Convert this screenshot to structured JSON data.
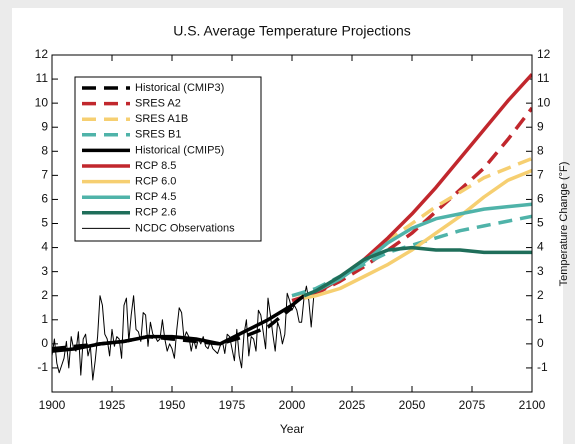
{
  "chart_data": {
    "type": "line",
    "title": "U.S. Average Temperature Projections",
    "x_label": "Year",
    "y2_label": "Temperature Change (°F)",
    "xlim": [
      1900,
      2100
    ],
    "xticks": [
      1900,
      1925,
      1950,
      1975,
      2000,
      2025,
      2050,
      2075,
      2100
    ],
    "ylim": [
      -2,
      12
    ],
    "yticks": [
      -1,
      0,
      1,
      2,
      3,
      4,
      5,
      6,
      7,
      8,
      9,
      10,
      11,
      12
    ],
    "y2lim": [
      -2,
      12
    ],
    "y2ticks": [
      -1,
      0,
      1,
      2,
      3,
      4,
      5,
      6,
      7,
      8,
      9,
      10,
      11,
      12
    ],
    "legend": "top-left",
    "series": [
      {
        "name": "Historical (CMIP3)",
        "color": "#000000",
        "style": "dashed",
        "width": 3.5,
        "x": [
          1900,
          1910,
          1920,
          1930,
          1940,
          1950,
          1960,
          1970,
          1980,
          1990,
          2000
        ],
        "values": [
          -0.2,
          -0.1,
          0,
          0.1,
          0.3,
          0.2,
          0.1,
          0,
          0.3,
          0.7,
          1.5
        ]
      },
      {
        "name": "SRES A2",
        "color": "#c1272d",
        "style": "dashed",
        "width": 3.5,
        "x": [
          2000,
          2010,
          2020,
          2030,
          2040,
          2050,
          2060,
          2070,
          2080,
          2090,
          2100
        ],
        "values": [
          1.8,
          2.1,
          2.6,
          3.2,
          3.9,
          4.6,
          5.5,
          6.4,
          7.3,
          8.5,
          9.8
        ]
      },
      {
        "name": "SRES A1B",
        "color": "#f6cf71",
        "style": "dashed",
        "width": 3.5,
        "x": [
          2000,
          2010,
          2020,
          2030,
          2040,
          2050,
          2060,
          2070,
          2080,
          2090,
          2100
        ],
        "values": [
          2.0,
          2.2,
          2.8,
          3.5,
          4.3,
          5.0,
          5.7,
          6.3,
          6.9,
          7.3,
          7.7
        ]
      },
      {
        "name": "SRES B1",
        "color": "#4fb3a9",
        "style": "dashed",
        "width": 3.5,
        "x": [
          2000,
          2010,
          2020,
          2030,
          2040,
          2050,
          2060,
          2070,
          2080,
          2090,
          2100
        ],
        "values": [
          2.0,
          2.3,
          2.8,
          3.3,
          3.8,
          4.1,
          4.4,
          4.7,
          4.9,
          5.1,
          5.3
        ]
      },
      {
        "name": "Historical (CMIP5)",
        "color": "#000000",
        "style": "solid",
        "width": 3.5,
        "x": [
          1900,
          1910,
          1920,
          1930,
          1940,
          1950,
          1960,
          1970,
          1980,
          1990,
          2000,
          2005
        ],
        "values": [
          -0.3,
          -0.2,
          0,
          0.1,
          0.3,
          0.3,
          0.2,
          0,
          0.5,
          1.0,
          1.6,
          2.0
        ]
      },
      {
        "name": "RCP 8.5",
        "color": "#c1272d",
        "style": "solid",
        "width": 3.5,
        "x": [
          2005,
          2010,
          2020,
          2030,
          2040,
          2050,
          2060,
          2070,
          2080,
          2090,
          2100
        ],
        "values": [
          2.0,
          2.1,
          2.7,
          3.5,
          4.4,
          5.4,
          6.5,
          7.7,
          8.9,
          10.1,
          11.2
        ]
      },
      {
        "name": "RCP 6.0",
        "color": "#f6cf71",
        "style": "solid",
        "width": 3.5,
        "x": [
          2005,
          2010,
          2020,
          2030,
          2040,
          2050,
          2060,
          2070,
          2080,
          2090,
          2100
        ],
        "values": [
          1.9,
          2.0,
          2.3,
          2.8,
          3.3,
          3.9,
          4.6,
          5.3,
          6.1,
          6.8,
          7.2
        ]
      },
      {
        "name": "RCP 4.5",
        "color": "#4fb3a9",
        "style": "solid",
        "width": 3.5,
        "x": [
          2005,
          2010,
          2020,
          2030,
          2040,
          2050,
          2060,
          2070,
          2080,
          2090,
          2100
        ],
        "values": [
          2.0,
          2.2,
          2.7,
          3.4,
          4.2,
          4.8,
          5.2,
          5.4,
          5.6,
          5.7,
          5.8
        ]
      },
      {
        "name": "RCP 2.6",
        "color": "#1f6e5a",
        "style": "solid",
        "width": 3.5,
        "x": [
          2005,
          2010,
          2020,
          2030,
          2040,
          2050,
          2060,
          2070,
          2080,
          2090,
          2100
        ],
        "values": [
          2.0,
          2.2,
          2.8,
          3.5,
          3.9,
          4.0,
          3.9,
          3.9,
          3.8,
          3.8,
          3.8
        ]
      },
      {
        "name": "NCDC Observations",
        "color": "#000000",
        "style": "solid",
        "width": 1,
        "x": [
          1900,
          1901,
          1902,
          1903,
          1904,
          1905,
          1906,
          1907,
          1908,
          1909,
          1910,
          1911,
          1912,
          1913,
          1914,
          1915,
          1916,
          1917,
          1918,
          1919,
          1920,
          1921,
          1922,
          1923,
          1924,
          1925,
          1926,
          1927,
          1928,
          1929,
          1930,
          1931,
          1932,
          1933,
          1934,
          1935,
          1936,
          1937,
          1938,
          1939,
          1940,
          1941,
          1942,
          1943,
          1944,
          1945,
          1946,
          1947,
          1948,
          1949,
          1950,
          1951,
          1952,
          1953,
          1954,
          1955,
          1956,
          1957,
          1958,
          1959,
          1960,
          1961,
          1962,
          1963,
          1964,
          1965,
          1966,
          1967,
          1968,
          1969,
          1970,
          1971,
          1972,
          1973,
          1974,
          1975,
          1976,
          1977,
          1978,
          1979,
          1980,
          1981,
          1982,
          1983,
          1984,
          1985,
          1986,
          1987,
          1988,
          1989,
          1990,
          1991,
          1992,
          1993,
          1994,
          1995,
          1996,
          1997,
          1998,
          1999,
          2000,
          2001,
          2002,
          2003,
          2004,
          2005,
          2006,
          2007,
          2008,
          2009
        ],
        "values": [
          -0.5,
          0.2,
          -0.8,
          -1.2,
          -0.9,
          -0.6,
          0.1,
          -1.0,
          0.3,
          -0.2,
          -0.3,
          0.5,
          -1.3,
          0.2,
          0.4,
          -0.5,
          -0.1,
          -1.5,
          -0.7,
          0.3,
          2.0,
          1.6,
          0.4,
          0.2,
          -0.5,
          0.6,
          -0.1,
          0.3,
          0.2,
          -0.6,
          1.6,
          1.9,
          0.1,
          1.2,
          2.0,
          0.6,
          0.5,
          0.1,
          1.3,
          1.2,
          -0.1,
          0.9,
          0.4,
          0.3,
          0.1,
          0.2,
          1.0,
          0.2,
          -0.3,
          0.0,
          -0.2,
          -0.6,
          0.6,
          1.5,
          1.3,
          0.2,
          0.5,
          0.3,
          -0.3,
          0.2,
          -0.2,
          0.2,
          0.0,
          0.3,
          -0.1,
          -0.2,
          0.1,
          -0.2,
          -0.3,
          -0.4,
          -0.1,
          0.1,
          -0.4,
          0.4,
          0.3,
          -0.2,
          -0.7,
          0.6,
          -0.5,
          -1.0,
          0.4,
          1.0,
          -0.5,
          0.3,
          0.2,
          -0.3,
          1.4,
          1.2,
          0.5,
          -0.2,
          1.9,
          1.2,
          0.4,
          -0.3,
          0.9,
          0.6,
          0.0,
          0.4,
          2.1,
          1.8,
          1.4,
          1.6,
          1.4,
          0.9,
          0.9,
          1.9,
          2.4,
          1.8,
          0.7,
          1.9
        ]
      }
    ]
  }
}
